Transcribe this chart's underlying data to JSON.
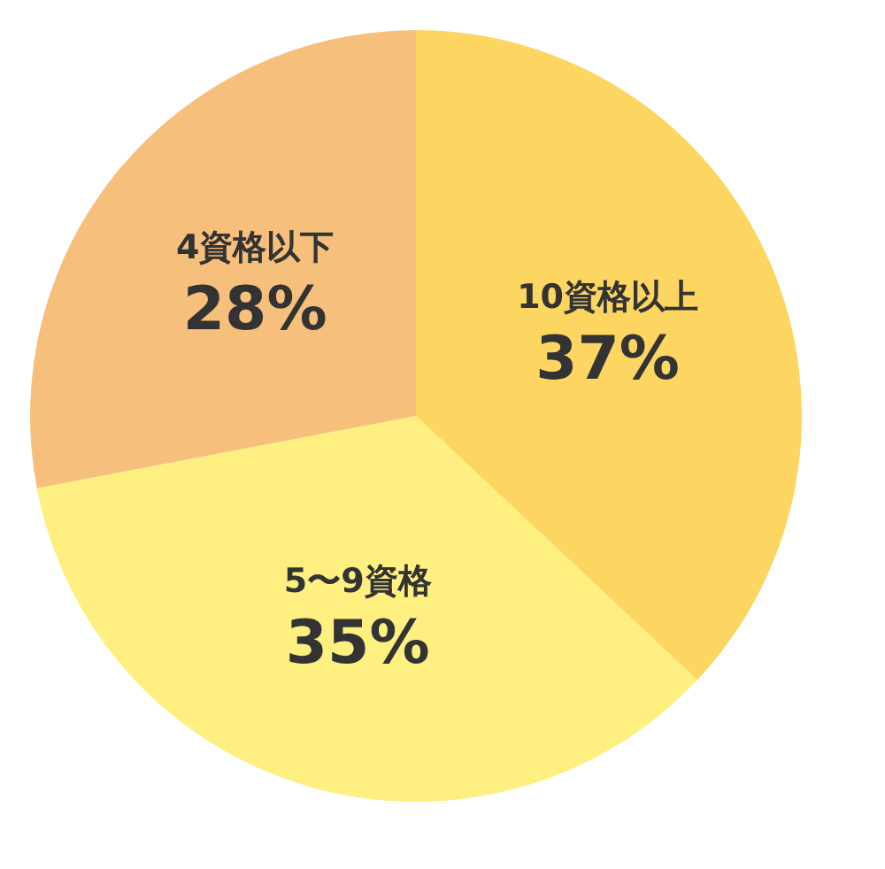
{
  "chart_data": {
    "type": "pie",
    "categories": [
      "10資格以上",
      "5〜9資格",
      "4資格以下"
    ],
    "values": [
      37,
      35,
      28
    ],
    "colors": [
      "#fcd660",
      "#fdef80",
      "#f6c07c"
    ],
    "value_labels": [
      "37%",
      "35%",
      "28%"
    ],
    "legend": false
  }
}
